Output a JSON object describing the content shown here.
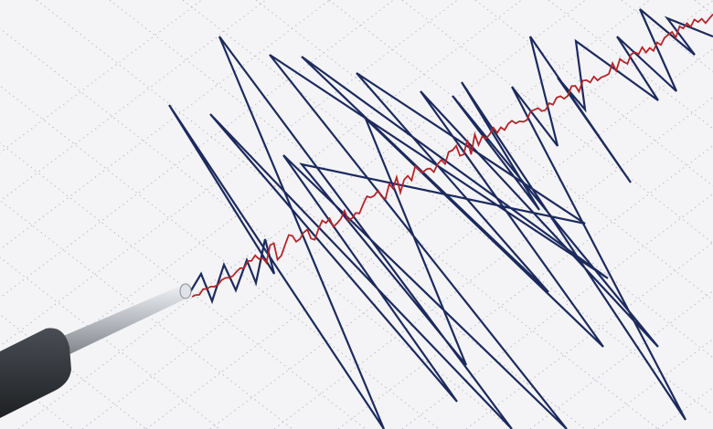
{
  "colors": {
    "paper": "#f4f4f6",
    "grid": "#b8bcc4",
    "seismic_trace": "#1c2a5e",
    "recording_trace": "#b3262a",
    "stylus_body": "#2e3135",
    "stylus_rod": "#c9ccd1"
  }
}
